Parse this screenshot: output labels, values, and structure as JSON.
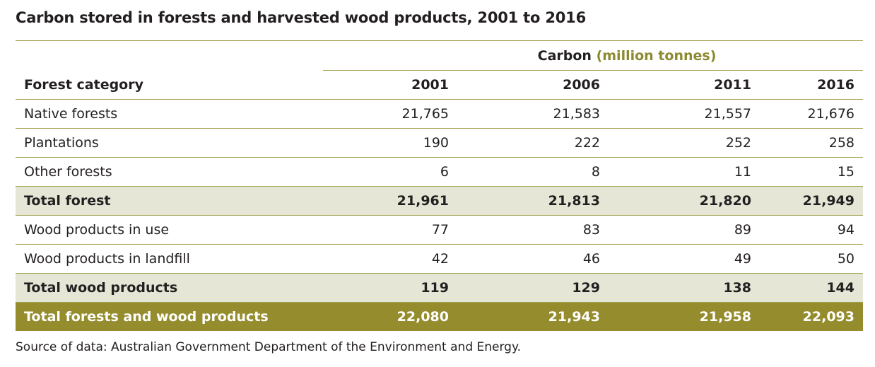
{
  "title": "Carbon stored in forests and harvested wood products, 2001 to 2016",
  "table": {
    "group_label": "Carbon",
    "group_unit": "(million tonnes)",
    "category_header": "Forest category",
    "years": [
      "2001",
      "2006",
      "2011",
      "2016"
    ],
    "rows": [
      {
        "label": "Native forests",
        "values": [
          "21,765",
          "21,583",
          "21,557",
          "21,676"
        ],
        "kind": "data"
      },
      {
        "label": "Plantations",
        "values": [
          "190",
          "222",
          "252",
          "258"
        ],
        "kind": "data"
      },
      {
        "label": "Other forests",
        "values": [
          "6",
          "8",
          "11",
          "15"
        ],
        "kind": "data"
      },
      {
        "label": "Total forest",
        "values": [
          "21,961",
          "21,813",
          "21,820",
          "21,949"
        ],
        "kind": "subtotal"
      },
      {
        "label": "Wood products in use",
        "values": [
          "77",
          "83",
          "89",
          "94"
        ],
        "kind": "data"
      },
      {
        "label": "Wood products in landfill",
        "values": [
          "42",
          "46",
          "49",
          "50"
        ],
        "kind": "data"
      },
      {
        "label": "Total wood products",
        "values": [
          "119",
          "129",
          "138",
          "144"
        ],
        "kind": "subtotal"
      },
      {
        "label": "Total forests and wood products",
        "values": [
          "22,080",
          "21,943",
          "21,958",
          "22,093"
        ],
        "kind": "grand"
      }
    ]
  },
  "source": "Source of data: Australian Government Department of the Environment and Energy.",
  "colors": {
    "rule": "#a0a050",
    "subtotal_bg": "#e6e6d6",
    "grand_bg": "#948c2d",
    "unit_text": "#8c8a2f"
  }
}
